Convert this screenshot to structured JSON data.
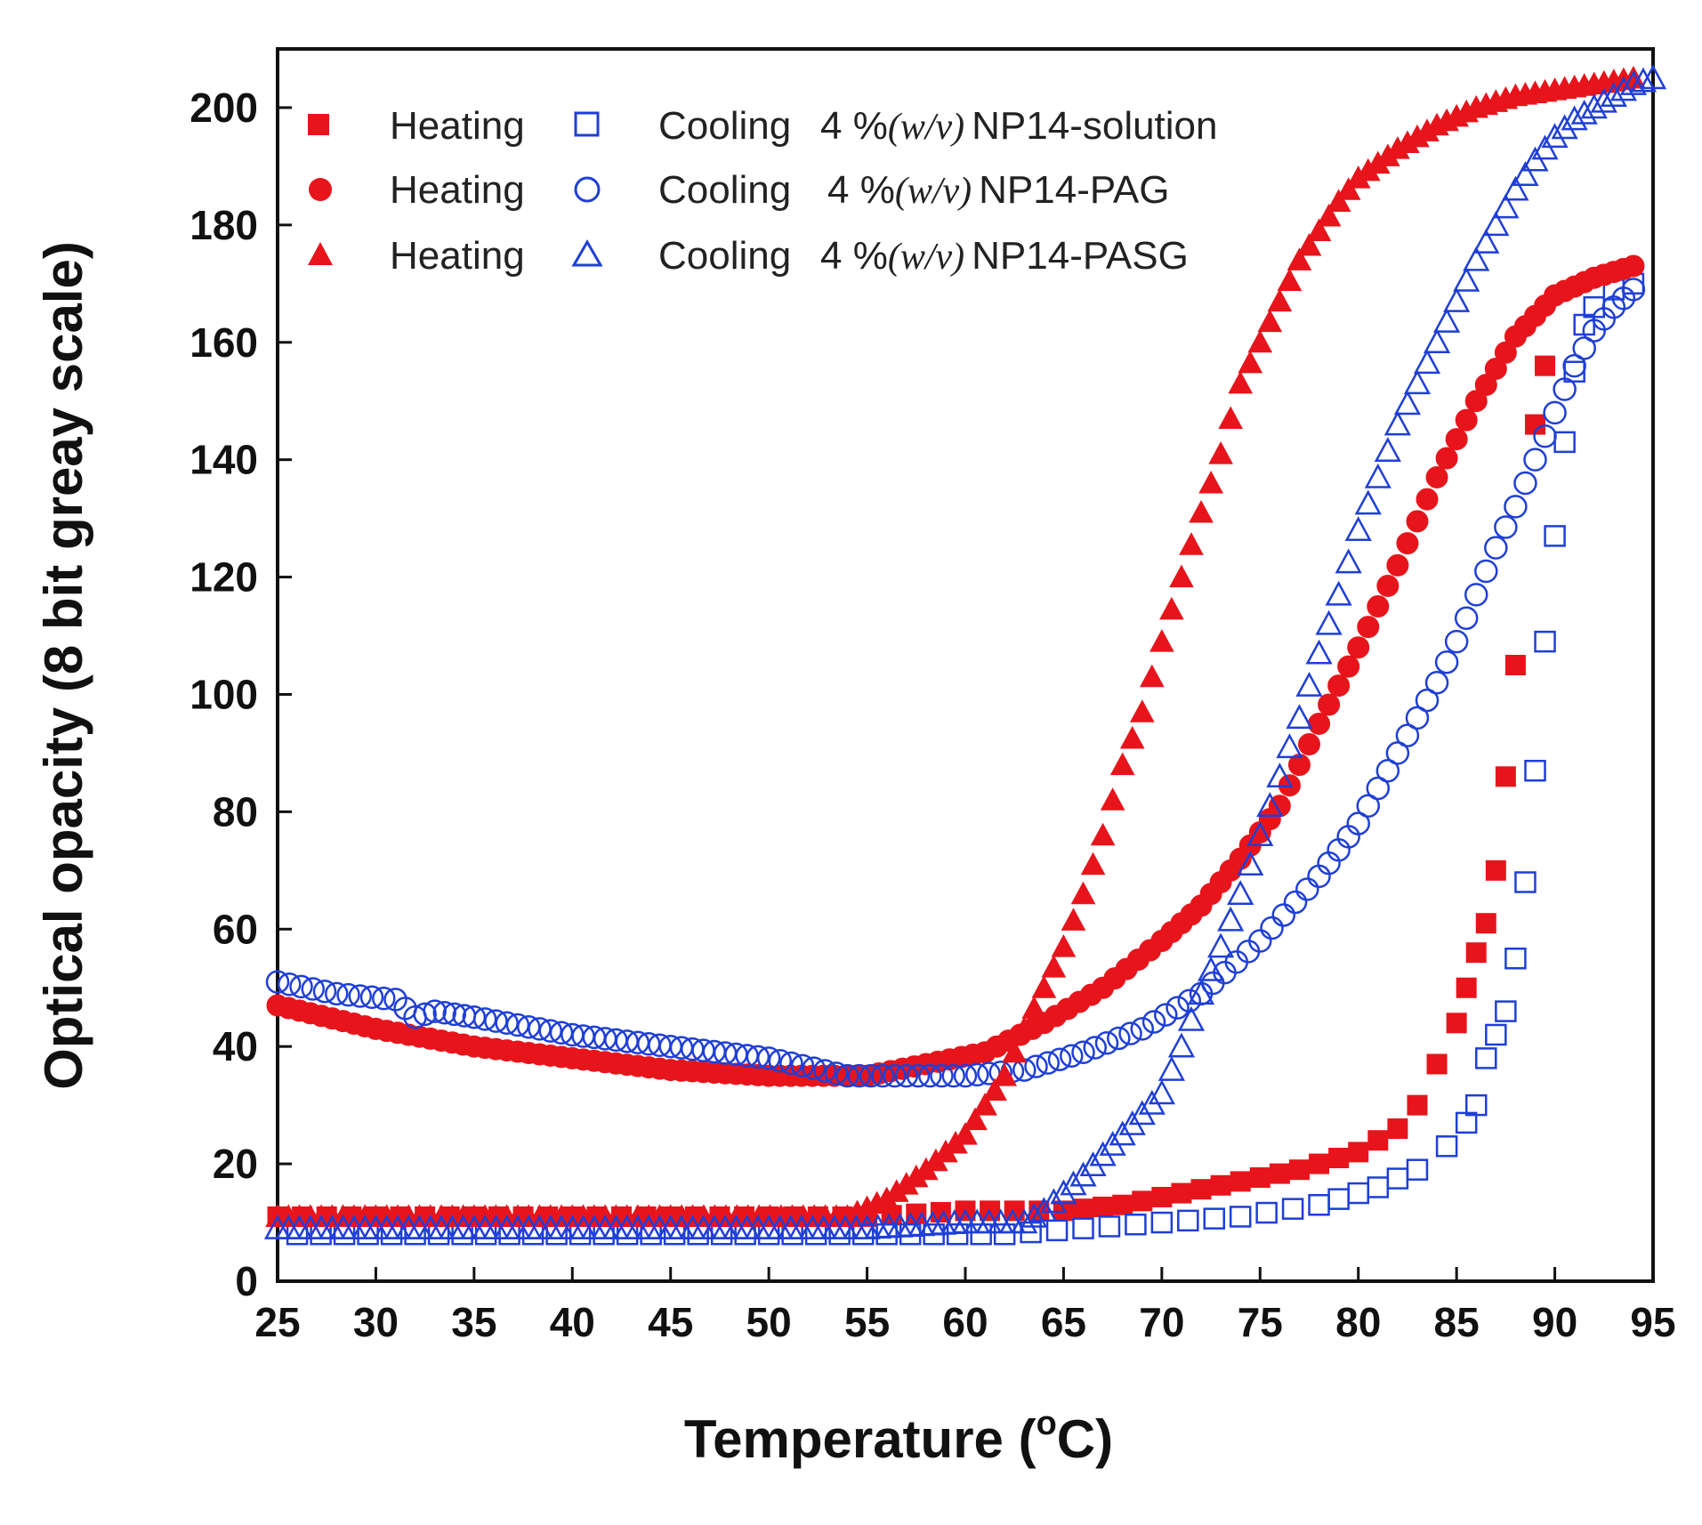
{
  "chart_data": {
    "type": "scatter",
    "title": "",
    "xlabel": "Temperature (",
    "xlabel_degree": "o",
    "xlabel_unit": "C)",
    "ylabel": "Optical opacity (8 bit greay scale)",
    "xlim": [
      25,
      95
    ],
    "ylim": [
      0,
      210
    ],
    "xticks": [
      25,
      30,
      35,
      40,
      45,
      50,
      55,
      60,
      65,
      70,
      75,
      80,
      85,
      90,
      95
    ],
    "yticks": [
      0,
      20,
      40,
      60,
      80,
      100,
      120,
      140,
      160,
      180,
      200
    ],
    "grid": false,
    "legend_position": "top-left",
    "legend": [
      {
        "heating_label": "Heating",
        "cooling_label": "Cooling",
        "conc": "4 %",
        "unit": "(w/v)",
        "sample": "NP14-solution",
        "marker": "square"
      },
      {
        "heating_label": "Heating",
        "cooling_label": "Cooling",
        "conc": "4 %",
        "unit": "(w/v)",
        "sample": "NP14-PAG",
        "marker": "circle"
      },
      {
        "heating_label": "Heating",
        "cooling_label": "Cooling",
        "conc": "4 %",
        "unit": "(w/v)",
        "sample": "NP14-PASG",
        "marker": "triangle"
      }
    ],
    "colors": {
      "heating": "#e8141b",
      "cooling": "#1f3fd6"
    },
    "series": [
      {
        "name": "Heating 4 %(w/v) NP14-solution",
        "marker": "square",
        "filled": true,
        "color": "#e8141b",
        "x": [
          25,
          35,
          45,
          55,
          60,
          65,
          68,
          71,
          74,
          77,
          80,
          82,
          83,
          84,
          85,
          85.5,
          86,
          86.5,
          87,
          87.5,
          88,
          89,
          89.5
        ],
        "y": [
          11,
          11,
          11,
          11,
          12,
          12,
          13,
          15,
          17,
          19,
          22,
          26,
          30,
          37,
          44,
          50,
          56,
          61,
          70,
          86,
          105,
          146,
          156
        ]
      },
      {
        "name": "Cooling 4 %(w/v) NP14-solution",
        "marker": "square",
        "filled": false,
        "color": "#1f3fd6",
        "x": [
          26,
          32,
          38,
          44,
          50,
          56,
          62,
          66,
          70,
          74,
          78,
          81,
          83,
          84.5,
          85.5,
          86,
          86.5,
          87,
          87.5,
          88,
          88.5,
          89,
          89.5,
          90,
          90.5,
          91,
          91.5,
          92,
          93,
          94
        ],
        "y": [
          8,
          8,
          8,
          8,
          8,
          8,
          8,
          9,
          10,
          11,
          13,
          16,
          19,
          23,
          27,
          30,
          38,
          42,
          46,
          55,
          68,
          87,
          109,
          127,
          143,
          155,
          163,
          166,
          169,
          170
        ]
      },
      {
        "name": "Heating 4 %(w/v) NP14-PAG",
        "marker": "circle",
        "filled": true,
        "color": "#e8141b",
        "x": [
          25,
          30,
          35,
          40,
          45,
          50,
          55,
          58,
          61,
          64,
          67,
          70,
          72,
          74,
          76,
          78,
          80,
          82,
          84,
          86,
          88,
          90,
          92,
          94
        ],
        "y": [
          47,
          43,
          40,
          38,
          36,
          35,
          35,
          37,
          39,
          44,
          50,
          58,
          64,
          72,
          81,
          95,
          108,
          122,
          137,
          150,
          161,
          168,
          171,
          173
        ]
      },
      {
        "name": "Cooling 4 %(w/v) NP14-PAG",
        "marker": "circle",
        "filled": false,
        "color": "#1f3fd6",
        "x": [
          25,
          28,
          31,
          32,
          33,
          35,
          40,
          45,
          50,
          54,
          57,
          60,
          63,
          66,
          69,
          72,
          75,
          78,
          80,
          82,
          84,
          85,
          86,
          87,
          88,
          89,
          90,
          91,
          92,
          93,
          94
        ],
        "y": [
          51,
          49,
          48,
          45,
          46,
          45,
          42,
          40,
          38,
          35,
          35,
          35,
          36,
          39,
          43,
          49,
          58,
          69,
          78,
          90,
          102,
          109,
          117,
          125,
          132,
          140,
          148,
          156,
          162,
          166,
          169
        ]
      },
      {
        "name": "Heating 4 %(w/v) NP14-PASG",
        "marker": "triangle",
        "filled": true,
        "color": "#e8141b",
        "x": [
          25,
          35,
          45,
          54,
          56,
          58,
          60,
          62,
          63,
          64,
          65,
          66,
          67,
          68,
          69,
          70,
          71,
          72,
          73,
          74,
          75,
          76,
          77,
          78,
          79,
          80,
          82,
          84,
          86,
          88,
          90,
          92,
          94
        ],
        "y": [
          11,
          11,
          11,
          11,
          14,
          19,
          25,
          35,
          43,
          50,
          57,
          66,
          76,
          88,
          97,
          109,
          120,
          131,
          141,
          153,
          160,
          167,
          174,
          179,
          184,
          188,
          193,
          197,
          200,
          202,
          203,
          204,
          205
        ]
      },
      {
        "name": "Cooling 4 %(w/v) NP14-PASG",
        "marker": "triangle",
        "filled": false,
        "color": "#1f3fd6",
        "x": [
          25,
          35,
          45,
          55,
          60,
          63,
          64,
          65,
          66,
          68,
          70,
          71,
          72,
          73,
          74,
          75,
          76,
          77,
          78,
          79,
          80,
          81,
          82,
          83,
          84,
          85,
          86,
          87,
          88,
          89,
          90,
          91,
          92,
          93,
          94,
          95
        ],
        "y": [
          9,
          9,
          9,
          9,
          10,
          10,
          12,
          15,
          18,
          25,
          32,
          40,
          49,
          57,
          66,
          76,
          86,
          96,
          107,
          117,
          128,
          137,
          146,
          153,
          160,
          167,
          174,
          180,
          186,
          191,
          195,
          198,
          200,
          202,
          204,
          205
        ]
      }
    ]
  }
}
